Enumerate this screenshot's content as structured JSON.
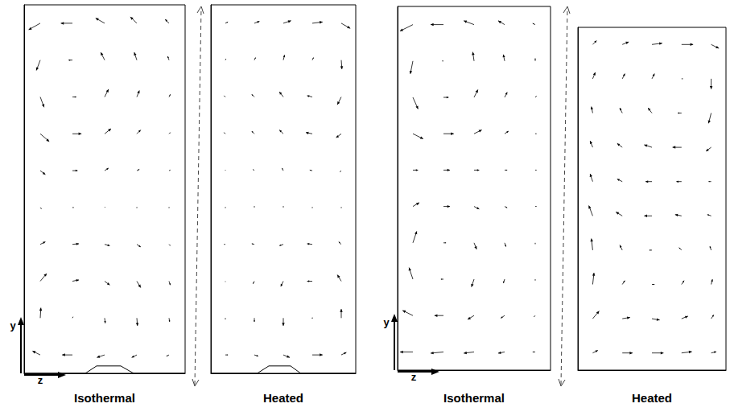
{
  "chart_data": [
    {
      "type": "quiver",
      "title": "Isothermal",
      "xlabel": "z",
      "ylabel": "y",
      "xlim": [
        0,
        1
      ],
      "ylim": [
        0,
        1
      ],
      "grid": false,
      "tick_labels": false,
      "x": [
        0.1,
        0.3,
        0.5,
        0.7,
        0.9
      ],
      "y": [
        0.95,
        0.85,
        0.75,
        0.65,
        0.55,
        0.45,
        0.35,
        0.25,
        0.15,
        0.05
      ],
      "u": [
        [
          -0.9,
          -0.9,
          -0.7,
          -0.5,
          -0.3
        ],
        [
          -0.3,
          -0.3,
          -0.3,
          -0.2,
          -0.1
        ],
        [
          0.3,
          0.3,
          0.3,
          0.2,
          0.1
        ],
        [
          0.7,
          0.7,
          0.5,
          0.3,
          0.1
        ],
        [
          0.4,
          0.4,
          0.3,
          0.2,
          0.1
        ],
        [
          0.1,
          0.1,
          0.05,
          0,
          0
        ],
        [
          0.4,
          0.5,
          0.4,
          0.3,
          0.1
        ],
        [
          0.5,
          0.5,
          0.4,
          0.3,
          0.1
        ],
        [
          0.05,
          0.05,
          0.05,
          0.05,
          0.05
        ],
        [
          -0.6,
          -0.8,
          -0.6,
          -0.4,
          -0.2
        ]
      ],
      "v": [
        [
          -0.5,
          0,
          0.4,
          0.5,
          0.3
        ],
        [
          -0.8,
          0,
          0.6,
          0.6,
          0.3
        ],
        [
          -0.8,
          0,
          0.6,
          0.5,
          0.2
        ],
        [
          -0.6,
          0,
          0.4,
          0.3,
          0.1
        ],
        [
          -0.3,
          0,
          0.2,
          0.1,
          0.05
        ],
        [
          -0.1,
          0,
          0.05,
          0,
          0
        ],
        [
          0.2,
          0.05,
          -0.1,
          -0.2,
          -0.1
        ],
        [
          0.6,
          0.1,
          -0.3,
          -0.5,
          -0.3
        ],
        [
          0.8,
          0.1,
          -0.4,
          -0.6,
          -0.3
        ],
        [
          0.3,
          0,
          -0.2,
          -0.2,
          -0.1
        ]
      ],
      "bottom_profile": {
        "x": [
          0,
          0.38,
          0.45,
          0.6,
          0.68,
          1
        ],
        "y": [
          0,
          0,
          0.02,
          0.02,
          0,
          0
        ]
      }
    },
    {
      "type": "quiver",
      "title": "Heated",
      "xlim": [
        0,
        1
      ],
      "ylim": [
        0,
        1
      ],
      "grid": false,
      "tick_labels": false,
      "x": [
        0.1,
        0.3,
        0.5,
        0.7,
        0.9
      ],
      "y": [
        0.95,
        0.85,
        0.75,
        0.65,
        0.55,
        0.45,
        0.35,
        0.25,
        0.15,
        0.05
      ],
      "u": [
        [
          0.2,
          0.4,
          0.6,
          0.8,
          0.7
        ],
        [
          0.05,
          0.1,
          0.1,
          0.1,
          0.05
        ],
        [
          -0.1,
          -0.2,
          -0.3,
          -0.4,
          -0.3
        ],
        [
          -0.1,
          -0.2,
          -0.3,
          -0.5,
          -0.4
        ],
        [
          0,
          -0.1,
          -0.1,
          -0.2,
          -0.1
        ],
        [
          0,
          0,
          0,
          0,
          0
        ],
        [
          -0.1,
          -0.2,
          -0.3,
          -0.4,
          -0.2
        ],
        [
          0,
          -0.1,
          -0.2,
          -0.4,
          -0.3
        ],
        [
          0,
          0,
          0,
          0,
          0
        ],
        [
          0.2,
          0.3,
          0.5,
          0.8,
          0.4
        ]
      ],
      "v": [
        [
          0.1,
          0.15,
          0.2,
          0.1,
          -0.4
        ],
        [
          0.1,
          0.2,
          0.4,
          0.2,
          -0.7
        ],
        [
          0.1,
          0.2,
          0.4,
          0.1,
          -0.6
        ],
        [
          0.1,
          0.2,
          0.3,
          0.1,
          -0.3
        ],
        [
          0.05,
          0.1,
          0.2,
          0.05,
          -0.1
        ],
        [
          0,
          0.1,
          0.1,
          0,
          0
        ],
        [
          0,
          0.05,
          -0.1,
          0.05,
          0.2
        ],
        [
          -0.05,
          -0.2,
          -0.4,
          0,
          0.5
        ],
        [
          -0.1,
          -0.3,
          -0.6,
          0,
          0.7
        ],
        [
          0,
          -0.1,
          -0.2,
          0,
          0.2
        ]
      ],
      "bottom_profile": {
        "x": [
          0,
          0.32,
          0.4,
          0.55,
          0.62,
          1
        ],
        "y": [
          0,
          0,
          0.02,
          0.02,
          0,
          0
        ]
      }
    },
    {
      "type": "quiver",
      "title": "Isothermal",
      "xlabel": "z",
      "ylabel": "y",
      "xlim": [
        0,
        1
      ],
      "ylim": [
        0,
        1
      ],
      "grid": false,
      "tick_labels": false,
      "x": [
        0.1,
        0.3,
        0.5,
        0.7,
        0.9
      ],
      "y": [
        0.95,
        0.85,
        0.75,
        0.65,
        0.55,
        0.45,
        0.35,
        0.25,
        0.15,
        0.05
      ],
      "u": [
        [
          -1,
          -1,
          -0.8,
          -0.5,
          -0.2
        ],
        [
          -0.2,
          -0.1,
          -0.1,
          -0.1,
          0
        ],
        [
          0.4,
          0.4,
          0.3,
          0.2,
          0.1
        ],
        [
          0.8,
          0.8,
          0.6,
          0.3,
          0.1
        ],
        [
          0.4,
          0.5,
          0.4,
          0.2,
          0.1
        ],
        [
          0.5,
          0.5,
          0.4,
          0.2,
          0.1
        ],
        [
          0.3,
          0.2,
          0.2,
          0.1,
          0
        ],
        [
          -0.3,
          -0.2,
          -0.2,
          -0.1,
          0
        ],
        [
          -0.8,
          -0.7,
          -0.5,
          -0.3,
          -0.1
        ],
        [
          -1,
          -1,
          -0.8,
          -0.5,
          -0.2
        ]
      ],
      "v": [
        [
          -0.5,
          0,
          0.3,
          0.3,
          0.1
        ],
        [
          -1,
          0,
          0.7,
          0.5,
          0.2
        ],
        [
          -0.9,
          0,
          0.6,
          0.4,
          0.1
        ],
        [
          -0.4,
          0,
          0.3,
          0.2,
          0
        ],
        [
          0,
          0,
          0,
          0,
          0
        ],
        [
          0.3,
          0,
          -0.2,
          -0.1,
          0
        ],
        [
          0.9,
          0,
          -0.5,
          -0.3,
          -0.1
        ],
        [
          0.9,
          0,
          -0.6,
          -0.3,
          -0.1
        ],
        [
          0.4,
          0,
          -0.3,
          -0.2,
          -0.1
        ],
        [
          0,
          -0.1,
          -0.1,
          -0.1,
          0
        ]
      ]
    },
    {
      "type": "quiver",
      "title": "Heated",
      "xlim": [
        0,
        1
      ],
      "ylim": [
        0,
        1
      ],
      "grid": false,
      "tick_labels": false,
      "x": [
        0.1,
        0.3,
        0.5,
        0.7,
        0.9
      ],
      "y": [
        0.95,
        0.85,
        0.75,
        0.65,
        0.55,
        0.45,
        0.35,
        0.25,
        0.15,
        0.05
      ],
      "u": [
        [
          0.3,
          0.5,
          0.8,
          0.9,
          0.6
        ],
        [
          0.2,
          0.2,
          0.2,
          0.1,
          0
        ],
        [
          -0.1,
          -0.2,
          -0.3,
          -0.3,
          -0.2
        ],
        [
          -0.2,
          -0.4,
          -0.6,
          -0.7,
          -0.4
        ],
        [
          -0.2,
          -0.4,
          -0.5,
          -0.4,
          -0.2
        ],
        [
          -0.3,
          -0.5,
          -0.6,
          -0.5,
          -0.3
        ],
        [
          -0.1,
          -0.2,
          -0.2,
          -0.2,
          -0.1
        ],
        [
          0.1,
          0.2,
          0.2,
          0.2,
          0.1
        ],
        [
          0.5,
          0.6,
          0.6,
          0.5,
          0.2
        ],
        [
          0.4,
          0.8,
          0.9,
          0.8,
          0.4
        ]
      ],
      "v": [
        [
          0.3,
          0.2,
          0.1,
          0,
          -0.3
        ],
        [
          0.5,
          0.4,
          0.4,
          0,
          -0.8
        ],
        [
          0.5,
          0.4,
          0.4,
          0,
          -0.8
        ],
        [
          0.5,
          0.3,
          0.2,
          0,
          -0.3
        ],
        [
          0.6,
          0.2,
          0,
          0,
          0
        ],
        [
          0.8,
          0.3,
          0,
          0.1,
          0.1
        ],
        [
          0.9,
          0.4,
          0,
          0.2,
          0.3
        ],
        [
          0.9,
          0.3,
          0,
          0.3,
          0.4
        ],
        [
          0.6,
          0.1,
          -0.1,
          0.2,
          0.3
        ],
        [
          0.2,
          0,
          0,
          0.1,
          0.1
        ]
      ]
    }
  ]
}
